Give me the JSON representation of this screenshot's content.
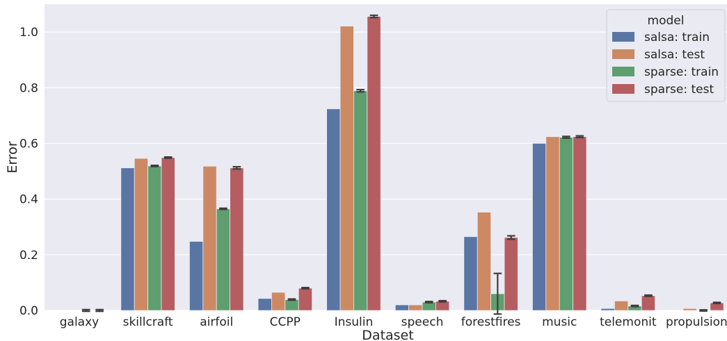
{
  "chart_data": {
    "type": "bar",
    "xlabel": "Dataset",
    "ylabel": "Error",
    "ylim": [
      0,
      1.1
    ],
    "yticks": [
      "0.0",
      "0.2",
      "0.4",
      "0.6",
      "0.8",
      "1.0"
    ],
    "grid": true,
    "legend": {
      "title": "model",
      "placement": "top-right"
    },
    "categories": [
      "galaxy",
      "skillcraft",
      "airfoil",
      "CCPP",
      "Insulin",
      "speech",
      "forestfires",
      "music",
      "telemonit",
      "propulsion"
    ],
    "series": [
      {
        "name": "salsa: train",
        "color": "#5875a4",
        "values": [
          0.0,
          0.512,
          0.248,
          0.043,
          0.724,
          0.02,
          0.265,
          0.6,
          0.007,
          0.0
        ],
        "error": [
          0,
          0,
          0,
          0,
          0,
          0,
          0,
          0,
          0,
          0
        ]
      },
      {
        "name": "salsa: test",
        "color": "#cc8963",
        "values": [
          0.0,
          0.546,
          0.518,
          0.065,
          1.021,
          0.02,
          0.353,
          0.624,
          0.034,
          0.007
        ],
        "error": [
          0,
          0,
          0,
          0,
          0,
          0,
          0,
          0,
          0,
          0
        ]
      },
      {
        "name": "sparse: train",
        "color": "#5f9e6e",
        "values": [
          0.0,
          0.519,
          0.365,
          0.039,
          0.789,
          0.03,
          0.06,
          0.622,
          0.016,
          0.0
        ],
        "error": [
          0.003,
          0.002,
          0.002,
          0.002,
          0.004,
          0.002,
          0.073,
          0.003,
          0.002,
          0.002
        ]
      },
      {
        "name": "sparse: test",
        "color": "#b55d60",
        "values": [
          0.0,
          0.549,
          0.512,
          0.08,
          1.056,
          0.033,
          0.262,
          0.624,
          0.053,
          0.027
        ],
        "error": [
          0.003,
          0.002,
          0.004,
          0.002,
          0.004,
          0.002,
          0.006,
          0.003,
          0.002,
          0.002
        ]
      }
    ]
  }
}
